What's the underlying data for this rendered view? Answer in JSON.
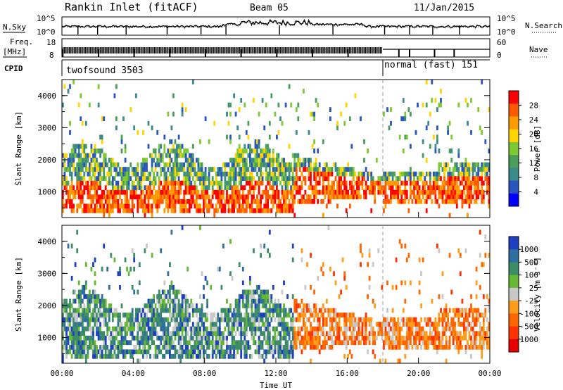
{
  "header": {
    "station": "Rankin Inlet (fitACF)",
    "beam": "Beam 05",
    "date": "11/Jan/2015"
  },
  "side_labels": {
    "nsky": "N.Sky",
    "freq": "Freq.",
    "freq_unit": "[MHz]",
    "cpid": "CPID",
    "nsearch": "N.Search",
    "nave": "Nave"
  },
  "cpid": {
    "first": "twofsound 3503",
    "second": "normal (fast) 151"
  },
  "chart_data": [
    {
      "type": "line",
      "name": "N.Sky / N.Search",
      "y_ticks": [
        "10^5",
        "10^0"
      ],
      "right_ticks": [
        "10^5",
        "10^0"
      ],
      "series": [
        {
          "name": "N.Sky",
          "style": "solid"
        },
        {
          "name": "N.Search",
          "style": "dotted"
        }
      ]
    },
    {
      "type": "line",
      "name": "Freq / Nave",
      "left_ticks": [
        "18",
        "8"
      ],
      "right_ticks": [
        "60",
        "0"
      ],
      "freq_level_mhz": 10,
      "freq_switch_hour": 18
    },
    {
      "type": "heatmap",
      "name": "power",
      "ylabel": "Slant Range [km]",
      "ylim": [
        200,
        4500
      ],
      "y_ticks": [
        "4000",
        "3000",
        "2000",
        "1000"
      ],
      "colorbar": {
        "label": "Power [dB]",
        "ticks": [
          "28",
          "24",
          "20",
          "16",
          "12",
          "8",
          "4"
        ],
        "colors": [
          "#ff0000",
          "#ff5a00",
          "#ff9a00",
          "#ffd400",
          "#7ec832",
          "#4a9e5a",
          "#3a8a8a",
          "#2a55c0",
          "#0000ff"
        ]
      }
    },
    {
      "type": "heatmap",
      "name": "velocity",
      "ylabel": "Slant Range [km]",
      "xlabel": "Time UT",
      "ylim": [
        200,
        4500
      ],
      "xlim": [
        0,
        24
      ],
      "y_ticks": [
        "4000",
        "3000",
        "2000",
        "1000"
      ],
      "x_ticks": [
        "00:00",
        "04:00",
        "08:00",
        "12:00",
        "16:00",
        "20:00",
        "00:00"
      ],
      "colorbar": {
        "label": "Velocity [m s⁻¹]",
        "ticks": [
          "1000",
          "500",
          "100",
          "25",
          "-25",
          "-100",
          "-500",
          "-1000"
        ],
        "colors": [
          "#1e3fbf",
          "#2f6f9f",
          "#3c8c68",
          "#66b833",
          "#c8c8c8",
          "#ff9c1a",
          "#ff6600",
          "#ff3300",
          "#e60000"
        ]
      }
    }
  ],
  "colors": {
    "dash_line": "#9a9a9a"
  }
}
